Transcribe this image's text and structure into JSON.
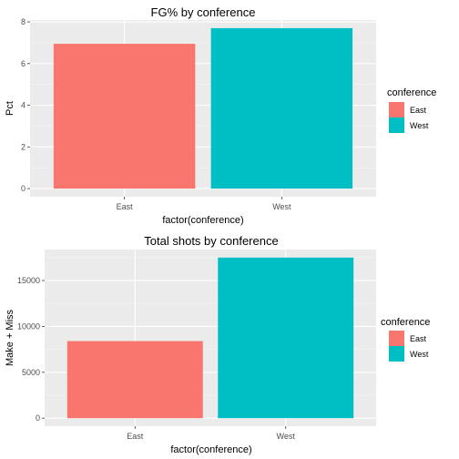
{
  "chart_data": [
    {
      "type": "bar",
      "title": "FG% by conference",
      "xlabel": "factor(conference)",
      "ylabel": "Pct",
      "categories": [
        "East",
        "West"
      ],
      "values": [
        6.95,
        7.7
      ],
      "ylim": [
        -0.39,
        8.09
      ],
      "yticks": [
        "0",
        "2",
        "4",
        "6",
        "8"
      ],
      "grid": true,
      "legend": {
        "title": "conference",
        "placement": "right",
        "entries": [
          "East",
          "West"
        ]
      },
      "colors": [
        "#F8766D",
        "#00BFC4"
      ]
    },
    {
      "type": "bar",
      "title": "Total shots by conference",
      "xlabel": "factor(conference)",
      "ylabel": "Make + Miss",
      "categories": [
        "East",
        "West"
      ],
      "values": [
        8400,
        17500
      ],
      "ylim": [
        -875,
        18375
      ],
      "yticks": [
        "0",
        "5000",
        "10000",
        "15000"
      ],
      "grid": true,
      "legend": {
        "title": "conference",
        "placement": "right",
        "entries": [
          "East",
          "West"
        ]
      },
      "colors": [
        "#F8766D",
        "#00BFC4"
      ]
    }
  ]
}
